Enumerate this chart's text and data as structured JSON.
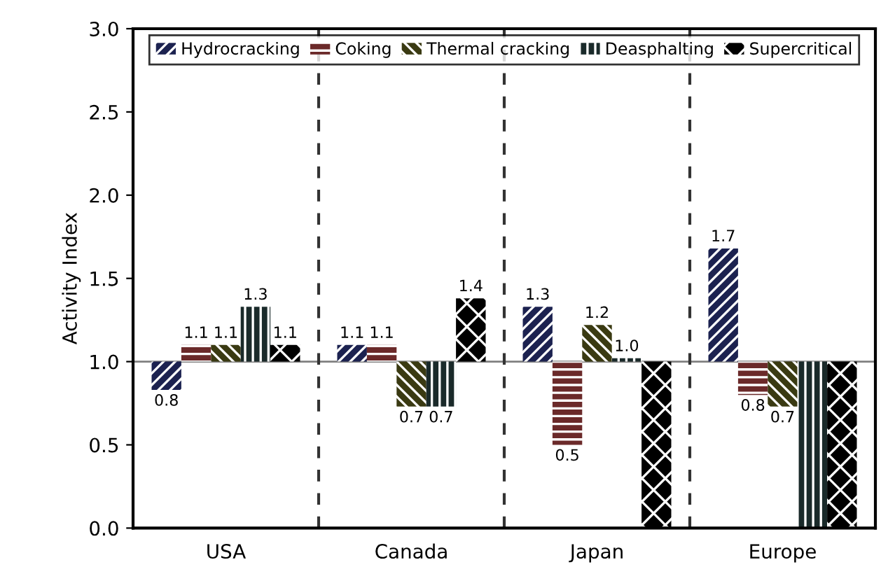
{
  "chart_data": {
    "type": "bar",
    "ylabel": "Activity Index",
    "categories": [
      "USA",
      "Canada",
      "Japan",
      "Europe"
    ],
    "series": [
      {
        "name": "Hydrocracking",
        "color": "#1c2250",
        "base": [
          1.0,
          1.0,
          1.0,
          1.0
        ],
        "values": [
          -0.17,
          0.1,
          0.33,
          0.68
        ],
        "value_labels": [
          "0.8",
          "1.1",
          "1.3",
          "1.7"
        ]
      },
      {
        "name": "Coking",
        "color": "#6b2a2a",
        "base": [
          1.0,
          1.0,
          1.0,
          1.0
        ],
        "values": [
          0.1,
          0.1,
          -0.5,
          -0.2
        ],
        "value_labels": [
          "1.1",
          "1.1",
          "0.5",
          "0.8"
        ]
      },
      {
        "name": "Thermal cracking",
        "color": "#3a3a12",
        "base": [
          1.0,
          1.0,
          1.0,
          1.0
        ],
        "values": [
          0.1,
          -0.27,
          0.22,
          -0.27
        ],
        "value_labels": [
          "1.1",
          "0.7",
          "1.2",
          "0.7"
        ]
      },
      {
        "name": "Deasphalting",
        "color": "#1a2a2a",
        "base": [
          1.0,
          1.0,
          1.0,
          1.0
        ],
        "values": [
          0.33,
          -0.27,
          0.02,
          -1.0
        ],
        "value_labels": [
          "1.3",
          "0.7",
          "1.0",
          null
        ]
      },
      {
        "name": "Supercritical",
        "color": "#000000",
        "base": [
          1.0,
          1.0,
          1.0,
          1.0
        ],
        "values": [
          0.1,
          0.38,
          -1.0,
          -1.0
        ],
        "value_labels": [
          "1.1",
          "1.4",
          null,
          null
        ]
      }
    ],
    "ylim": [
      0.0,
      3.0
    ],
    "yticks": [
      {
        "value": 0,
        "label": "0.0"
      },
      {
        "value": 0.5,
        "label": "0.5"
      },
      {
        "value": 1,
        "label": "1.0"
      },
      {
        "value": 1.5,
        "label": "1.5"
      },
      {
        "value": 2,
        "label": "2.0"
      },
      {
        "value": 2.5,
        "label": "2.5"
      },
      {
        "value": 3,
        "label": "3.0"
      }
    ],
    "ref_lines": [
      {
        "axis": "y",
        "value": 1.0,
        "color": "#808080",
        "line_style": "solid"
      }
    ],
    "legend": "top",
    "grid": false
  }
}
